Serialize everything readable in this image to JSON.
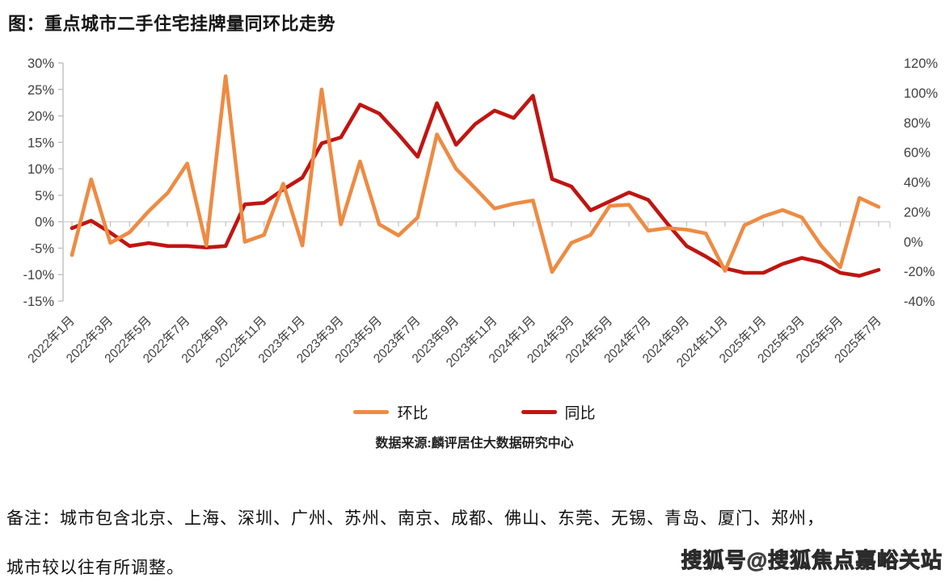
{
  "title": "图：重点城市二手住宅挂牌量同环比走势",
  "legend": {
    "mom_label": "环比",
    "yoy_label": "同比"
  },
  "source": "数据来源:麟评居住大数据研究中心",
  "footer": {
    "line1": "备注：城市包含北京、上海、深圳、广州、苏州、南京、成都、佛山、东莞、无锡、青岛、厦门、郑州，",
    "line2": "城市较以往有所调整。"
  },
  "watermark": "搜狐号@搜狐焦点嘉峪关站",
  "colors": {
    "mom": "#ED8B43",
    "yoy": "#C01511",
    "zero_line": "#D9D9D9",
    "axis": "#BFBFBF",
    "label": "#404040"
  },
  "chart_data": {
    "type": "line",
    "title": "重点城市二手住宅挂牌量同环比走势",
    "x_tick_labels": [
      "2022年1月",
      "2022年3月",
      "2022年5月",
      "2022年7月",
      "2022年9月",
      "2022年11月",
      "2023年1月",
      "2023年3月",
      "2023年5月",
      "2023年7月",
      "2023年9月",
      "2023年11月",
      "2024年1月",
      "2024年3月",
      "2024年5月",
      "2024年7月",
      "2024年9月",
      "2024年11月",
      "2025年1月",
      "2025年3月",
      "2025年5月",
      "2025年7月"
    ],
    "x_label_every_n_points": 2,
    "points_count": 43,
    "grid": "zero-line-only",
    "legend_position": "bottom",
    "left_axis": {
      "series": "环比",
      "max": 30,
      "min": -15,
      "tick_labels": [
        "30%",
        "25%",
        "20%",
        "15%",
        "10%",
        "5%",
        "0%",
        "-5%",
        "-10%",
        "-15%"
      ]
    },
    "right_axis": {
      "series": "同比",
      "max": 120,
      "min": -40,
      "tick_labels": [
        "120%",
        "100%",
        "80%",
        "60%",
        "40%",
        "20%",
        "0%",
        "-20%",
        "-40%"
      ]
    },
    "series": [
      {
        "name": "环比",
        "axis": "left",
        "color_key": "mom",
        "values": [
          -6.3,
          8,
          -4,
          -2,
          2,
          5.5,
          11,
          -4.5,
          27.5,
          -3.8,
          -2.5,
          7.2,
          -4.5,
          25,
          -0.5,
          11.4,
          -0.5,
          -2.6,
          0.8,
          16.5,
          10,
          6.3,
          2.5,
          3.4,
          4,
          -9.5,
          -4,
          -2.5,
          3,
          3.2,
          -1.7,
          -1.2,
          -1.5,
          -2.2,
          -9.3,
          -0.7,
          1,
          2.2,
          0.8,
          -4.5,
          -8.6,
          4.5,
          2.8
        ]
      },
      {
        "name": "同比",
        "axis": "right",
        "color_key": "yoy",
        "values": [
          9,
          14,
          6,
          -3,
          -1,
          -3,
          -3,
          -4,
          -3,
          25,
          26,
          35,
          43,
          66,
          70,
          92,
          86,
          72,
          57,
          93,
          65,
          79,
          88,
          83,
          98,
          42,
          37,
          21,
          27,
          33,
          28,
          12,
          -3,
          -10,
          -18,
          -21,
          -21,
          -15,
          -11,
          -14,
          -21,
          -23,
          -19
        ]
      }
    ]
  }
}
